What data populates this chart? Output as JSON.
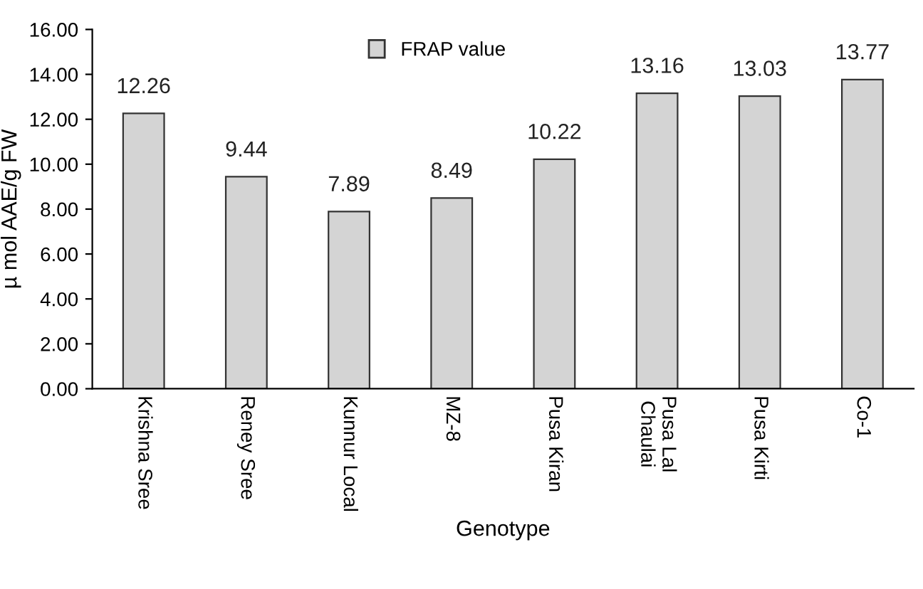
{
  "chart_data": {
    "type": "bar",
    "xlabel": "Genotype",
    "ylabel": "µ mol AAE/g FW",
    "categories": [
      "Krishna Sree",
      "Reney Sree",
      "Kunnur Local",
      "MZ-8",
      "Pusa Kiran",
      "Pusa Lal\nChaulai",
      "Pusa Kirti",
      "Co-1"
    ],
    "series": [
      {
        "name": "FRAP value",
        "color": "#d4d4d4",
        "values": [
          12.26,
          9.44,
          7.89,
          8.49,
          10.22,
          13.16,
          13.03,
          13.77
        ]
      }
    ],
    "ylim": [
      0,
      16
    ],
    "yticks": [
      {
        "value": 0,
        "label": "0.00"
      },
      {
        "value": 2,
        "label": "2.00"
      },
      {
        "value": 4,
        "label": "4.00"
      },
      {
        "value": 6,
        "label": "6.00"
      },
      {
        "value": 8,
        "label": "8.00"
      },
      {
        "value": 10,
        "label": "10.00"
      },
      {
        "value": 12,
        "label": "12.00"
      },
      {
        "value": 14,
        "label": "14.00"
      },
      {
        "value": 16,
        "label": "16.00"
      }
    ],
    "data_labels": true,
    "legend": "top",
    "grid": false
  }
}
